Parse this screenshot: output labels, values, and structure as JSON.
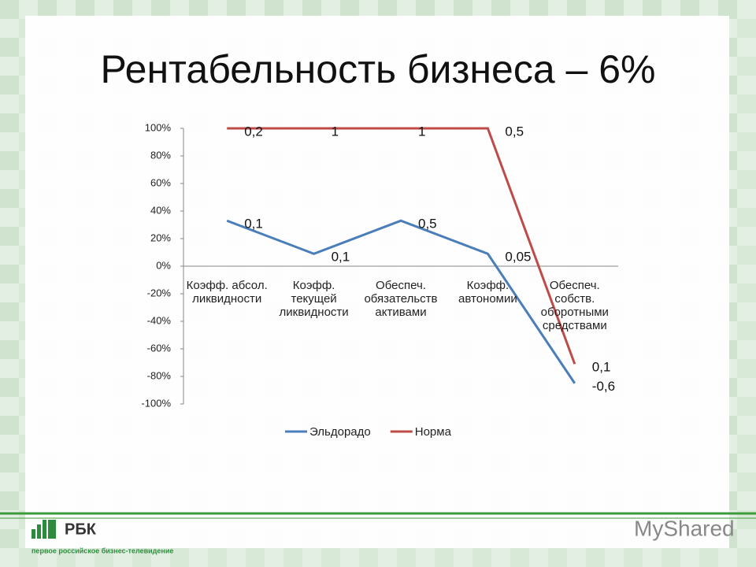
{
  "chart_data": {
    "type": "line",
    "title": "Рентабельность бизнеса – 6%",
    "categories": [
      "Коэфф. абсол. ликвидности",
      "Коэфф. текущей ликвидности",
      "Обеспеч. обязательств активами",
      "Коэфф. автономии",
      "Обеспеч. собств. оборотными средствами"
    ],
    "series": [
      {
        "name": "Эльдорадо",
        "color": "#4a7ebb",
        "values": [
          33,
          9,
          33,
          9,
          -85
        ],
        "point_labels": [
          "0,1",
          "0,1",
          "0,5",
          "0,05",
          "-0,6"
        ]
      },
      {
        "name": "Норма",
        "color": "#be4b48",
        "values": [
          100,
          100,
          100,
          100,
          -71
        ],
        "point_labels": [
          "0,2",
          "1",
          "1",
          "0,5",
          "0,1"
        ]
      }
    ],
    "ylim": [
      -100,
      100
    ],
    "yticks": [
      {
        "value": -100,
        "label": "-100%"
      },
      {
        "value": -80,
        "label": "-80%"
      },
      {
        "value": -60,
        "label": "-60%"
      },
      {
        "value": -40,
        "label": "-40%"
      },
      {
        "value": -20,
        "label": "-20%"
      },
      {
        "value": 0,
        "label": "0%"
      },
      {
        "value": 20,
        "label": "20%"
      },
      {
        "value": 40,
        "label": "40%"
      },
      {
        "value": 60,
        "label": "60%"
      },
      {
        "value": 80,
        "label": "80%"
      },
      {
        "value": 100,
        "label": "100%"
      }
    ],
    "legend": "bottom"
  },
  "footer": {
    "logo": "РБК",
    "logo_subtitle": "первое российское бизнес-телевидение",
    "watermark": "MyShared"
  }
}
